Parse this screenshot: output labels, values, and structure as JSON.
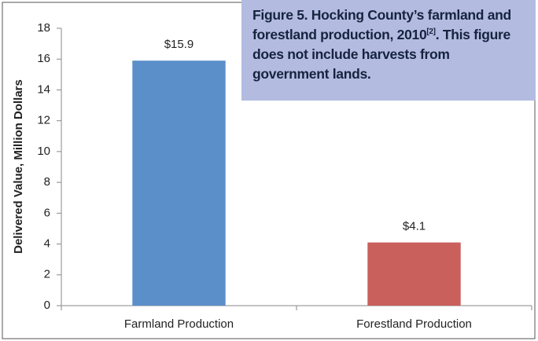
{
  "chart_data": {
    "type": "bar",
    "title": [
      "Figure 5. Hocking County’s farmland and forestland production, 2010",
      "[2]",
      ". This figure does not include harvests from government lands."
    ],
    "y_label": "Delivered Value, Million Dollars",
    "categories": [
      "Farmland Production",
      "Forestland Production"
    ],
    "values": [
      15.9,
      4.1
    ],
    "value_labels": [
      "$15.9",
      "$4.1"
    ],
    "colors": [
      "#5b8fc9",
      "#c9605c"
    ],
    "ylim": [
      0,
      18
    ],
    "yticks": [
      0,
      2,
      4,
      6,
      8,
      10,
      12,
      14,
      16,
      18
    ],
    "grid": false
  }
}
